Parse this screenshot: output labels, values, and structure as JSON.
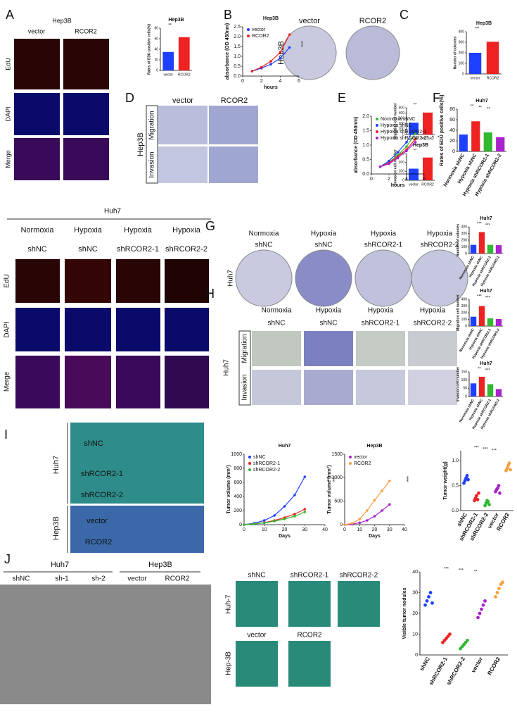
{
  "panel_letters": [
    "A",
    "B",
    "C",
    "D",
    "E",
    "F",
    "G",
    "H",
    "I",
    "J"
  ],
  "panel_a": {
    "cell_line": "Hep3B",
    "columns": [
      "vector",
      "RCOR2"
    ],
    "rows": [
      "EdU",
      "DAPI",
      "Merge"
    ]
  },
  "panel_c": {
    "columns": [
      "vector",
      "RCOR2"
    ],
    "cell_line": "Hep3B"
  },
  "panel_d": {
    "columns": [
      "vector",
      "RCOR2"
    ],
    "cell_line": "Hep3B",
    "rows": [
      "Migration",
      "Invasion"
    ]
  },
  "panel_huh7_edu": {
    "cell_line": "Huh7",
    "columns": [
      [
        "Normoxia",
        "shNC"
      ],
      [
        "Hypoxia",
        "shNC"
      ],
      [
        "Hypoxia",
        "shRCOR2-1"
      ],
      [
        "Hypoxia",
        "shRCOR2-2"
      ]
    ],
    "rows": [
      "EdU",
      "DAPI",
      "Merge"
    ]
  },
  "panel_g": {
    "columns": [
      [
        "Normoxia",
        "shNC"
      ],
      [
        "Hypoxia",
        "shNC"
      ],
      [
        "Hypoxia",
        "shRCOR2-1"
      ],
      [
        "Hypoxia",
        "shRCOR2-2"
      ]
    ],
    "cell_line": "Huh7"
  },
  "panel_h": {
    "columns": [
      [
        "Normoxia",
        "shNC"
      ],
      [
        "Hypoxia",
        "shNC"
      ],
      [
        "Hypoxia",
        "shRCOR2-1"
      ],
      [
        "Hypoxia",
        "shRCOR2-2"
      ]
    ],
    "cell_line": "Huh7",
    "rows": [
      "Migration",
      "Invasion"
    ]
  },
  "panel_i": {
    "groups": [
      "Huh7",
      "Hep3B"
    ],
    "rows": [
      "shNC",
      "shRCOR2-1",
      "shRCOR2-2",
      "vector",
      "RCOR2"
    ]
  },
  "panel_j": {
    "imaging_groups": [
      "Huh7",
      "Hep3B"
    ],
    "mice": [
      "shNC",
      "sh-1",
      "sh-2",
      "vector",
      "RCOR2"
    ],
    "lung_columns": [
      "shNC",
      "shRCOR2-1",
      "shRCOR2-2"
    ],
    "lung_columns_2": [
      "vector",
      "RCOR2"
    ],
    "lung_rows": [
      "Huh-7",
      "Hep-3B"
    ]
  },
  "chart_data": [
    {
      "type": "bar",
      "title": "Hep3B",
      "y_label": "Rates of EDU positive cells(%)",
      "categories": [
        "vector",
        "RCOR2"
      ],
      "values": [
        35,
        63
      ],
      "colors": [
        "#1f3fff",
        "#ee2222"
      ],
      "ylim": [
        0,
        80
      ],
      "yticks": [
        0,
        20,
        40,
        60,
        80
      ],
      "annotations": [
        "**"
      ]
    },
    {
      "type": "line",
      "title": "Hep3B",
      "x_label": "hours",
      "y_label": "absorbance (OD 450nm)",
      "x": [
        1,
        2,
        3,
        4,
        5
      ],
      "xlim": [
        0,
        6
      ],
      "xticks": [
        0,
        2,
        4,
        6
      ],
      "ylim": [
        0,
        2.5
      ],
      "yticks": [
        {
          "value": 0,
          "label": "0.0"
        },
        0.5,
        {
          "value": 1,
          "label": "1.0"
        },
        1.5,
        {
          "value": 2,
          "label": "2.0"
        },
        2.5
      ],
      "series": [
        {
          "name": "vector",
          "color": "#1f3fff",
          "values": [
            0.25,
            0.4,
            0.6,
            0.9,
            1.45
          ]
        },
        {
          "name": "RCOR2",
          "color": "#ee2222",
          "values": [
            0.25,
            0.45,
            0.75,
            1.2,
            2.1
          ]
        }
      ],
      "annotations": [
        "***"
      ]
    },
    {
      "type": "bar",
      "title": "Hep3B",
      "y_label": "Number of colonies",
      "categories": [
        "vector",
        "RCOR2"
      ],
      "values": [
        200,
        305
      ],
      "colors": [
        "#1f3fff",
        "#ee2222"
      ],
      "ylim": [
        0,
        400
      ],
      "yticks": [
        0,
        100,
        200,
        300,
        400
      ],
      "annotations": [
        "***"
      ]
    },
    {
      "type": "bar",
      "y_label": "Migration cell number",
      "categories": [
        "vector",
        "RCOR2"
      ],
      "values": [
        220,
        410
      ],
      "colors": [
        "#1f3fff",
        "#ee2222"
      ],
      "ylim": [
        0,
        500
      ],
      "yticks": [
        0,
        100,
        200,
        300,
        400,
        500
      ],
      "annotations": [
        "**"
      ]
    },
    {
      "type": "bar",
      "title": "Hep3B",
      "y_label": "Invasion cell number",
      "categories": [
        "vector",
        "RCOR2"
      ],
      "values": [
        130,
        255
      ],
      "colors": [
        "#1f3fff",
        "#ee2222"
      ],
      "ylim": [
        0,
        300
      ],
      "yticks": [
        0,
        100,
        200,
        300
      ],
      "annotations": [
        "**"
      ]
    },
    {
      "type": "line",
      "x_label": "hours",
      "y_label": "absorbance (OD 450nm)",
      "x": [
        1,
        2,
        3,
        4,
        5
      ],
      "xlim": [
        0,
        6
      ],
      "xticks": [
        0,
        2,
        4,
        6
      ],
      "ylim": [
        0,
        2
      ],
      "yticks": [
        {
          "value": 0,
          "label": "0.0"
        },
        0.5,
        {
          "value": 1,
          "label": "1.0"
        },
        1.5,
        {
          "value": 2,
          "label": "2.0"
        }
      ],
      "series": [
        {
          "name": "Normoxia shNC",
          "color": "#33b833",
          "values": [
            0.25,
            0.4,
            0.65,
            0.95,
            1.4
          ]
        },
        {
          "name": "Hypoxia shNC",
          "color": "#1f3fff",
          "values": [
            0.25,
            0.45,
            0.75,
            1.1,
            1.65
          ]
        },
        {
          "name": "Hypoxia shRCOR2-1",
          "color": "#ee2222",
          "values": [
            0.25,
            0.38,
            0.6,
            0.85,
            1.2
          ]
        },
        {
          "name": "Hypoxia shRCOR2-2",
          "color": "#aa22cc",
          "values": [
            0.25,
            0.35,
            0.55,
            0.8,
            1.1
          ]
        }
      ],
      "annotations": [
        "*",
        "*",
        "*"
      ]
    },
    {
      "type": "bar",
      "title": "Huh7",
      "y_label": "Rates of EDU positive cells(%)",
      "categories": [
        "Normoxia shNC",
        "Hypoxia shNC",
        "Hypoxia shRCOR2-1",
        "Hypoxia shRCOR2-2"
      ],
      "values": [
        32,
        57,
        36,
        27
      ],
      "colors": [
        "#1f3fff",
        "#ee2222",
        "#33b833",
        "#aa22cc"
      ],
      "ylim": [
        0,
        80
      ],
      "yticks": [
        0,
        20,
        40,
        60,
        80
      ],
      "annotations": [
        "**",
        "**",
        "**"
      ]
    },
    {
      "type": "bar",
      "title": "Huh7",
      "y_label": "Number of colonies",
      "categories": [
        "Normoxia shNC",
        "Hypoxia shNC",
        "Hypoxia shRCOR2-1",
        "Hypoxia shRCOR2-2"
      ],
      "values": [
        130,
        320,
        130,
        125
      ],
      "colors": [
        "#1f3fff",
        "#ee2222",
        "#33b833",
        "#aa22cc"
      ],
      "ylim": [
        0,
        400
      ],
      "yticks": [
        0,
        100,
        200,
        300,
        400
      ],
      "annotations": [
        "***",
        "***"
      ]
    },
    {
      "type": "bar",
      "title": "Huh7",
      "y_label": "Migration cell number",
      "categories": [
        "Normoxia shNC",
        "Hypoxia shNC",
        "Hypoxia shRCOR2-1",
        "Hypoxia shRCOR2-2"
      ],
      "values": [
        140,
        300,
        115,
        105
      ],
      "colors": [
        "#1f3fff",
        "#ee2222",
        "#33b833",
        "#aa22cc"
      ],
      "ylim": [
        0,
        400
      ],
      "yticks": [
        0,
        100,
        200,
        300,
        400
      ],
      "annotations": [
        "***",
        "***"
      ]
    },
    {
      "type": "bar",
      "title": "Huh7",
      "y_label": "Invasion cell number",
      "categories": [
        "Normoxia shNC",
        "Hypoxia shNC",
        "Hypoxia shRCOR2-1",
        "Hypoxia shRCOR2-2"
      ],
      "values": [
        80,
        120,
        75,
        45
      ],
      "colors": [
        "#1f3fff",
        "#ee2222",
        "#33b833",
        "#aa22cc"
      ],
      "ylim": [
        0,
        150
      ],
      "yticks": [
        0,
        50,
        100,
        150
      ],
      "annotations": [
        "**",
        "***"
      ]
    },
    {
      "type": "line",
      "title": "Huh7",
      "x_label": "Days",
      "y_label": "Tumor volume (mm³)",
      "x": [
        0,
        5,
        10,
        15,
        20,
        25,
        30
      ],
      "xlim": [
        0,
        40
      ],
      "xticks": [
        0,
        10,
        20,
        30,
        40
      ],
      "ylim": [
        0,
        1000
      ],
      "yticks": [
        0,
        200,
        400,
        600,
        800,
        1000
      ],
      "series": [
        {
          "name": "shNC",
          "color": "#1f3fff",
          "values": [
            0,
            20,
            60,
            130,
            260,
            420,
            680
          ]
        },
        {
          "name": "shRCOR2-1",
          "color": "#ee2222",
          "values": [
            0,
            10,
            30,
            60,
            100,
            150,
            220
          ]
        },
        {
          "name": "shRCOR2-2",
          "color": "#33b833",
          "values": [
            0,
            10,
            25,
            50,
            80,
            120,
            180
          ]
        }
      ],
      "annotations": [
        "***",
        "***"
      ]
    },
    {
      "type": "line",
      "title": "Hep3B",
      "x_label": "Days",
      "y_label": "Tumor volume (mm³)",
      "x": [
        0,
        5,
        10,
        15,
        20,
        25,
        30
      ],
      "xlim": [
        0,
        40
      ],
      "xticks": [
        0,
        10,
        20,
        30,
        40
      ],
      "ylim": [
        0,
        1500
      ],
      "yticks": [
        0,
        500,
        1000,
        1500
      ],
      "series": [
        {
          "name": "vector",
          "color": "#aa22cc",
          "values": [
            0,
            10,
            40,
            90,
            180,
            300,
            430
          ]
        },
        {
          "name": "RCOR2",
          "color": "#f5a040",
          "values": [
            0,
            30,
            120,
            300,
            520,
            720,
            930
          ]
        }
      ],
      "annotations": [
        "***"
      ]
    },
    {
      "type": "strip",
      "y_label": "Tumor weight(g)",
      "ylim": [
        0,
        1.2
      ],
      "yticks": [
        {
          "value": 0,
          "label": "0.0"
        },
        0.5,
        {
          "value": 1,
          "label": "1.0"
        }
      ],
      "groups": [
        {
          "name": "shNC",
          "color": "#1f3fff",
          "values": [
            0.55,
            0.6,
            0.65,
            0.7,
            0.62
          ]
        },
        {
          "name": "shRCOR2-1",
          "color": "#ee2222",
          "values": [
            0.2,
            0.25,
            0.3,
            0.22,
            0.35
          ]
        },
        {
          "name": "shRCOR2-2",
          "color": "#33b833",
          "values": [
            0.1,
            0.15,
            0.2,
            0.18,
            0.12
          ]
        },
        {
          "name": "vector",
          "color": "#aa22cc",
          "values": [
            0.38,
            0.42,
            0.45,
            0.5,
            0.35
          ]
        },
        {
          "name": "RCOR2",
          "color": "#f5a040",
          "values": [
            0.8,
            0.85,
            0.9,
            0.95,
            0.82
          ]
        }
      ],
      "annotations": [
        "***",
        "***",
        "***"
      ]
    },
    {
      "type": "strip",
      "y_label": "Visible tumor nodules",
      "ylim": [
        0,
        40
      ],
      "yticks": [
        0,
        10,
        20,
        30,
        40
      ],
      "groups": [
        {
          "name": "shNC",
          "color": "#1f3fff",
          "values": [
            24,
            26,
            28,
            30,
            25
          ]
        },
        {
          "name": "shRCOR2-1",
          "color": "#ee2222",
          "values": [
            6,
            7,
            8,
            9,
            10
          ]
        },
        {
          "name": "shRCOR2-2",
          "color": "#33b833",
          "values": [
            3,
            4,
            5,
            6,
            7
          ]
        },
        {
          "name": "vector",
          "color": "#aa22cc",
          "values": [
            18,
            20,
            22,
            24,
            26
          ]
        },
        {
          "name": "RCOR2",
          "color": "#f5a040",
          "values": [
            28,
            30,
            32,
            34,
            35
          ]
        }
      ],
      "annotations": [
        "***",
        "***",
        "**"
      ]
    }
  ]
}
